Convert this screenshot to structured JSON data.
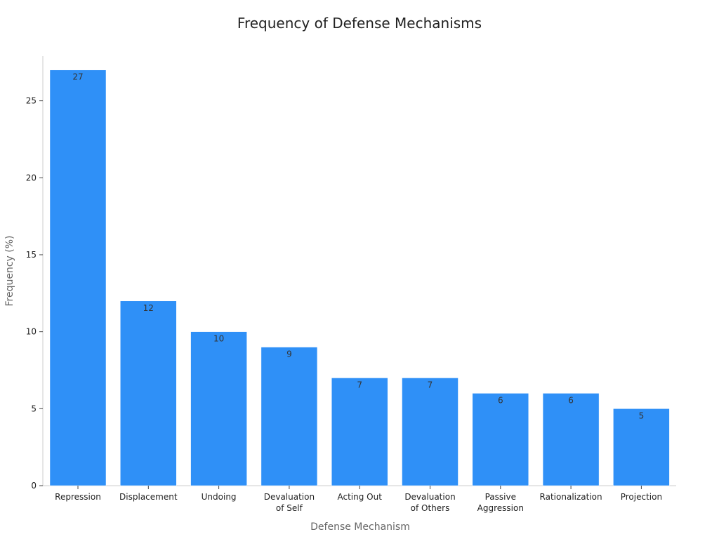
{
  "chart_data": {
    "type": "bar",
    "title": "Frequency of Defense Mechanisms",
    "xlabel": "Defense Mechanism",
    "ylabel": "Frequency (%)",
    "categories": [
      [
        "Repression"
      ],
      [
        "Displacement"
      ],
      [
        "Undoing"
      ],
      [
        "Devaluation",
        "of Self"
      ],
      [
        "Acting Out"
      ],
      [
        "Devaluation",
        "of Others"
      ],
      [
        "Passive",
        "Aggression"
      ],
      [
        "Rationalization"
      ],
      [
        "Projection"
      ]
    ],
    "values": [
      27,
      12,
      10,
      9,
      7,
      7,
      6,
      6,
      5
    ],
    "ylim": [
      0,
      27.9
    ],
    "yticks": [
      0,
      5,
      10,
      15,
      20,
      25
    ],
    "bar_color": "#2f90f7",
    "grid": false,
    "legend": "none"
  }
}
